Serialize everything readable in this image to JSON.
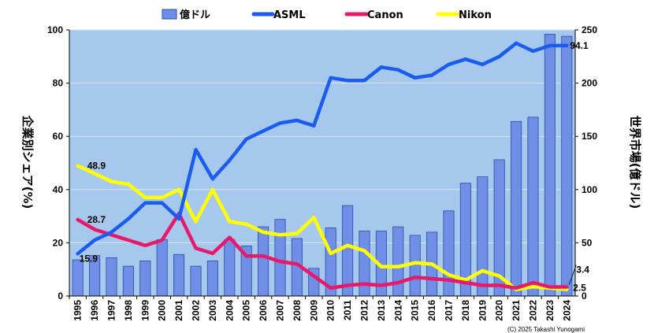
{
  "chart_data": {
    "type": "bar",
    "categories": [
      "1995",
      "1996",
      "1997",
      "1998",
      "1999",
      "2000",
      "2001",
      "2002",
      "2003",
      "2004",
      "2005",
      "2006",
      "2007",
      "2008",
      "2009",
      "2010",
      "2011",
      "2012",
      "2013",
      "2014",
      "2015",
      "2016",
      "2017",
      "2018",
      "2019",
      "2020",
      "2021",
      "2022",
      "2023",
      "2024"
    ],
    "ylabel_left": "企業別シェア(%)",
    "ylabel_right": "世界市場(億ドル)",
    "ylim_left": [
      0,
      100
    ],
    "ylim_right": [
      0,
      250
    ],
    "left_ticks": [
      "0",
      "20",
      "40",
      "60",
      "80",
      "100"
    ],
    "right_ticks": [
      "0",
      "50",
      "100",
      "150",
      "200",
      "250"
    ],
    "bar_series": {
      "name": "億ドル",
      "axis": "right",
      "color": "#6f8fe6",
      "values": [
        34,
        38,
        36,
        28,
        33,
        53,
        39,
        28,
        33,
        53,
        47,
        65,
        72,
        54,
        26,
        64,
        85,
        61,
        61,
        65,
        57,
        60,
        80,
        106,
        112,
        128,
        164,
        168,
        246,
        244
      ]
    },
    "line_series": [
      {
        "name": "ASML",
        "color": "#1a5cf0",
        "values": [
          15.9,
          21,
          24,
          29,
          35,
          35,
          29,
          55,
          44,
          51,
          59,
          62,
          65,
          66,
          64,
          82,
          81,
          81,
          86,
          85,
          82,
          83,
          87,
          89,
          87,
          90,
          95,
          92,
          94.1,
          94.1
        ]
      },
      {
        "name": "Canon",
        "color": "#e8186a",
        "values": [
          28.7,
          25,
          23,
          21,
          19,
          21,
          31,
          18,
          16,
          22,
          15,
          15,
          13,
          12,
          7.5,
          3,
          4,
          4.5,
          4,
          5,
          7,
          6.5,
          6,
          5,
          4,
          4,
          3,
          5,
          3.4,
          3.4
        ]
      },
      {
        "name": "Nikon",
        "color": "#ffff00",
        "values": [
          48.9,
          46,
          43,
          42,
          37,
          37,
          40,
          28,
          40,
          28,
          27,
          24,
          23,
          23.5,
          29.5,
          16,
          19,
          17,
          11,
          11,
          12.5,
          12,
          8,
          6,
          9.5,
          7.5,
          2.5,
          3.5,
          3,
          2.5
        ]
      }
    ],
    "annotations": [
      "48.9",
      "28.7",
      "15.9",
      "94.1",
      "3.4",
      "2.5"
    ],
    "credit": "(C) 2025 Takashi Yunogami",
    "grid": true,
    "legend_position": "top"
  }
}
